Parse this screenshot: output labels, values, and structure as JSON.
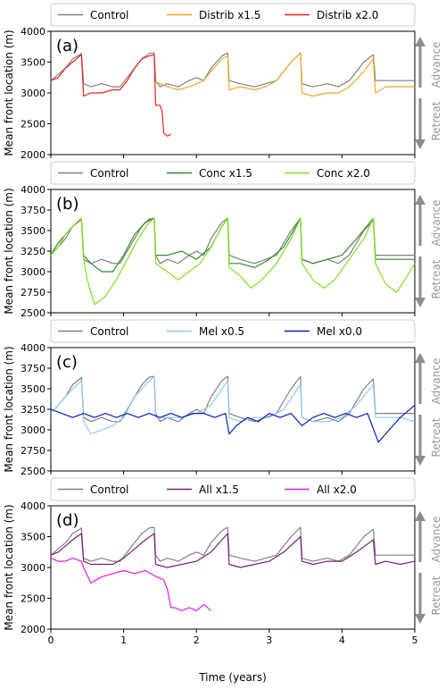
{
  "figure": {
    "xlabel": "Time (years)",
    "ylabel": "Mean front location (m)",
    "advance_label": "Advance",
    "retreat_label": "Retreat",
    "arrow_color": "#8c8c8c"
  },
  "chart_data": [
    {
      "type": "line",
      "panel_label": "(a)",
      "xlim": [
        0,
        5
      ],
      "ylim": [
        2000,
        4000
      ],
      "yticks": [
        2000,
        2500,
        3000,
        3500,
        4000
      ],
      "xticks": [
        0,
        1,
        2,
        3,
        4,
        5
      ],
      "legend": "top",
      "series": [
        {
          "name": "Control",
          "color": "#808080",
          "x": [
            0,
            0.1,
            0.2,
            0.3,
            0.4,
            0.42,
            0.45,
            0.55,
            0.7,
            0.85,
            0.95,
            1.05,
            1.15,
            1.25,
            1.35,
            1.42,
            1.44,
            1.5,
            1.6,
            1.75,
            1.9,
            2.0,
            2.1,
            2.2,
            2.35,
            2.43,
            2.45,
            2.6,
            2.8,
            2.95,
            3.1,
            3.3,
            3.43,
            3.45,
            3.6,
            3.8,
            3.95,
            4.1,
            4.3,
            4.43,
            4.46,
            4.6,
            4.8,
            5.0
          ],
          "y": [
            3200,
            3300,
            3400,
            3550,
            3620,
            3640,
            3150,
            3100,
            3150,
            3100,
            3100,
            3250,
            3400,
            3550,
            3640,
            3650,
            3200,
            3100,
            3150,
            3100,
            3200,
            3250,
            3200,
            3400,
            3600,
            3650,
            3200,
            3150,
            3100,
            3150,
            3200,
            3500,
            3650,
            3150,
            3100,
            3150,
            3100,
            3200,
            3500,
            3620,
            3200,
            3200,
            3200,
            3200
          ]
        },
        {
          "name": "Distrib x1.5",
          "color": "#f5a623",
          "x": [
            1.42,
            1.5,
            1.6,
            1.75,
            1.9,
            2.0,
            2.1,
            2.2,
            2.35,
            2.43,
            2.45,
            2.6,
            2.8,
            2.95,
            3.1,
            3.3,
            3.43,
            3.45,
            3.6,
            3.8,
            3.95,
            4.1,
            4.3,
            4.43,
            4.46,
            4.6,
            4.8,
            5.0
          ],
          "y": [
            3200,
            3150,
            3100,
            3050,
            3100,
            3150,
            3200,
            3350,
            3550,
            3600,
            3050,
            3100,
            3050,
            3100,
            3200,
            3500,
            3650,
            3000,
            2950,
            3000,
            3000,
            3100,
            3350,
            3550,
            3000,
            3100,
            3100,
            3100
          ]
        },
        {
          "name": "Distrib x2.0",
          "color": "#e8211e",
          "x": [
            0,
            0.1,
            0.2,
            0.3,
            0.4,
            0.42,
            0.45,
            0.55,
            0.7,
            0.85,
            0.95,
            1.05,
            1.15,
            1.25,
            1.35,
            1.42,
            1.44,
            1.5,
            1.53,
            1.55,
            1.6,
            1.65
          ],
          "y": [
            3200,
            3250,
            3400,
            3500,
            3600,
            3620,
            2950,
            3000,
            3000,
            3050,
            3050,
            3200,
            3400,
            3550,
            3600,
            3620,
            2800,
            2800,
            2700,
            2350,
            2300,
            2330
          ]
        }
      ]
    },
    {
      "type": "line",
      "panel_label": "(b)",
      "xlim": [
        0,
        5
      ],
      "ylim": [
        2500,
        4000
      ],
      "yticks": [
        2500,
        2750,
        3000,
        3250,
        3500,
        3750,
        4000
      ],
      "xticks": [
        0,
        1,
        2,
        3,
        4,
        5
      ],
      "legend": "top",
      "series": [
        {
          "name": "Control",
          "color": "#808080",
          "x": [
            0,
            0.1,
            0.2,
            0.3,
            0.4,
            0.42,
            0.45,
            0.55,
            0.7,
            0.85,
            0.95,
            1.05,
            1.15,
            1.25,
            1.35,
            1.42,
            1.44,
            1.5,
            1.6,
            1.75,
            1.9,
            2.0,
            2.1,
            2.2,
            2.35,
            2.43,
            2.45,
            2.6,
            2.8,
            2.95,
            3.1,
            3.3,
            3.43,
            3.45,
            3.6,
            3.8,
            3.95,
            4.1,
            4.3,
            4.43,
            4.46,
            4.6,
            4.8,
            5.0
          ],
          "y": [
            3200,
            3300,
            3400,
            3550,
            3620,
            3640,
            3150,
            3100,
            3150,
            3100,
            3100,
            3250,
            3400,
            3550,
            3640,
            3650,
            3200,
            3100,
            3150,
            3100,
            3200,
            3250,
            3200,
            3400,
            3600,
            3650,
            3200,
            3150,
            3100,
            3150,
            3200,
            3500,
            3650,
            3150,
            3100,
            3150,
            3100,
            3200,
            3500,
            3620,
            3200,
            3200,
            3200,
            3200
          ]
        },
        {
          "name": "Conc x1.5",
          "color": "#2e8b2e",
          "x": [
            0,
            0.1,
            0.2,
            0.3,
            0.42,
            0.45,
            0.55,
            0.7,
            0.85,
            1.0,
            1.15,
            1.3,
            1.42,
            1.44,
            1.6,
            1.8,
            2.0,
            2.2,
            2.35,
            2.43,
            2.45,
            2.6,
            2.8,
            3.0,
            3.2,
            3.43,
            3.45,
            3.6,
            3.8,
            4.0,
            4.2,
            4.43,
            4.46,
            4.6,
            4.8,
            5.0
          ],
          "y": [
            3200,
            3350,
            3450,
            3550,
            3650,
            3200,
            3100,
            3000,
            3000,
            3200,
            3450,
            3600,
            3650,
            3200,
            3200,
            3250,
            3150,
            3300,
            3550,
            3650,
            3100,
            3100,
            3050,
            3150,
            3300,
            3650,
            3150,
            3100,
            3150,
            3200,
            3400,
            3650,
            3150,
            3150,
            3150,
            3150
          ]
        },
        {
          "name": "Conc x2.0",
          "color": "#7fe01e",
          "x": [
            0,
            0.1,
            0.2,
            0.3,
            0.42,
            0.45,
            0.5,
            0.6,
            0.75,
            0.9,
            1.05,
            1.2,
            1.35,
            1.42,
            1.44,
            1.6,
            1.75,
            1.9,
            2.05,
            2.2,
            2.35,
            2.43,
            2.45,
            2.6,
            2.75,
            2.9,
            3.1,
            3.3,
            3.43,
            3.45,
            3.6,
            3.75,
            3.9,
            4.1,
            4.3,
            4.43,
            4.46,
            4.6,
            4.75,
            4.9,
            5.0
          ],
          "y": [
            3200,
            3300,
            3450,
            3550,
            3650,
            3150,
            2900,
            2600,
            2700,
            2900,
            3150,
            3400,
            3600,
            3650,
            3100,
            3000,
            2900,
            3000,
            3100,
            3300,
            3550,
            3650,
            3050,
            2950,
            2800,
            2900,
            3100,
            3400,
            3650,
            3100,
            2900,
            2800,
            2900,
            3150,
            3400,
            3650,
            3100,
            2850,
            2750,
            2950,
            3100
          ]
        }
      ]
    },
    {
      "type": "line",
      "panel_label": "(c)",
      "xlim": [
        0,
        5
      ],
      "ylim": [
        2500,
        4000
      ],
      "yticks": [
        2500,
        2750,
        3000,
        3250,
        3500,
        3750,
        4000
      ],
      "xticks": [
        0,
        1,
        2,
        3,
        4,
        5
      ],
      "legend": "top",
      "series": [
        {
          "name": "Control",
          "color": "#808080",
          "x": [
            0,
            0.1,
            0.2,
            0.3,
            0.4,
            0.42,
            0.45,
            0.55,
            0.7,
            0.85,
            0.95,
            1.05,
            1.15,
            1.25,
            1.35,
            1.42,
            1.44,
            1.5,
            1.6,
            1.75,
            1.9,
            2.0,
            2.1,
            2.2,
            2.35,
            2.43,
            2.45,
            2.6,
            2.8,
            2.95,
            3.1,
            3.3,
            3.43,
            3.45,
            3.6,
            3.8,
            3.95,
            4.1,
            4.3,
            4.43,
            4.46,
            4.6,
            4.8,
            5.0
          ],
          "y": [
            3200,
            3300,
            3400,
            3550,
            3620,
            3640,
            3150,
            3100,
            3150,
            3100,
            3100,
            3250,
            3400,
            3550,
            3640,
            3650,
            3200,
            3100,
            3150,
            3100,
            3200,
            3250,
            3200,
            3400,
            3600,
            3650,
            3200,
            3150,
            3100,
            3150,
            3200,
            3500,
            3650,
            3150,
            3100,
            3150,
            3100,
            3200,
            3500,
            3620,
            3200,
            3200,
            3200,
            3200
          ]
        },
        {
          "name": "Mel x0.5",
          "color": "#87ceeb",
          "x": [
            0,
            0.1,
            0.2,
            0.3,
            0.42,
            0.45,
            0.55,
            0.7,
            0.85,
            1.0,
            1.15,
            1.3,
            1.42,
            1.44,
            1.6,
            1.8,
            2.0,
            2.2,
            2.35,
            2.43,
            2.45,
            2.6,
            2.8,
            3.0,
            3.2,
            3.43,
            3.45,
            3.6,
            3.8,
            4.0,
            4.2,
            4.43,
            4.46,
            4.6,
            4.8,
            5.0
          ],
          "y": [
            3200,
            3300,
            3400,
            3500,
            3600,
            3100,
            2950,
            3000,
            3050,
            3150,
            3400,
            3550,
            3650,
            3150,
            3150,
            3150,
            3200,
            3300,
            3500,
            3600,
            3150,
            3100,
            3150,
            3150,
            3250,
            3550,
            3150,
            3100,
            3100,
            3150,
            3300,
            3550,
            3150,
            3150,
            3150,
            3100
          ]
        },
        {
          "name": "Mel x0.0",
          "color": "#0a1fbf",
          "x": [
            0,
            0.15,
            0.3,
            0.45,
            0.6,
            0.75,
            0.9,
            1.05,
            1.2,
            1.35,
            1.5,
            1.65,
            1.8,
            1.95,
            2.1,
            2.25,
            2.4,
            2.45,
            2.55,
            2.7,
            2.85,
            3.0,
            3.15,
            3.3,
            3.45,
            3.6,
            3.75,
            3.9,
            4.05,
            4.2,
            4.35,
            4.5,
            4.65,
            4.8,
            5.0
          ],
          "y": [
            3250,
            3200,
            3150,
            3200,
            3150,
            3200,
            3150,
            3200,
            3150,
            3200,
            3150,
            3200,
            3150,
            3200,
            3200,
            3150,
            3200,
            2950,
            3050,
            3150,
            3100,
            3200,
            3150,
            3200,
            3050,
            3150,
            3200,
            3150,
            3200,
            3150,
            3200,
            2850,
            3000,
            3150,
            3300
          ]
        }
      ]
    },
    {
      "type": "line",
      "panel_label": "(d)",
      "xlim": [
        0,
        5
      ],
      "ylim": [
        2000,
        4000
      ],
      "yticks": [
        2000,
        2500,
        3000,
        3500,
        4000
      ],
      "xticks": [
        0,
        1,
        2,
        3,
        4,
        5
      ],
      "xticklabels": [
        "0",
        "1",
        "2",
        "3",
        "4",
        "5"
      ],
      "legend": "top",
      "series": [
        {
          "name": "Control",
          "color": "#808080",
          "x": [
            0,
            0.1,
            0.2,
            0.3,
            0.4,
            0.42,
            0.45,
            0.55,
            0.7,
            0.85,
            0.95,
            1.05,
            1.15,
            1.25,
            1.35,
            1.42,
            1.44,
            1.5,
            1.6,
            1.75,
            1.9,
            2.0,
            2.1,
            2.2,
            2.35,
            2.43,
            2.45,
            2.6,
            2.8,
            2.95,
            3.1,
            3.3,
            3.43,
            3.45,
            3.6,
            3.8,
            3.95,
            4.1,
            4.3,
            4.43,
            4.46,
            4.6,
            4.8,
            5.0
          ],
          "y": [
            3200,
            3300,
            3400,
            3550,
            3620,
            3640,
            3150,
            3100,
            3150,
            3100,
            3100,
            3250,
            3400,
            3550,
            3640,
            3650,
            3200,
            3100,
            3150,
            3100,
            3200,
            3250,
            3200,
            3400,
            3600,
            3650,
            3200,
            3150,
            3100,
            3150,
            3200,
            3500,
            3650,
            3150,
            3100,
            3150,
            3100,
            3200,
            3500,
            3620,
            3200,
            3200,
            3200,
            3200
          ]
        },
        {
          "name": "All x1.5",
          "color": "#7b1f7b",
          "x": [
            0,
            0.1,
            0.2,
            0.3,
            0.42,
            0.45,
            0.55,
            0.7,
            0.85,
            1.0,
            1.15,
            1.3,
            1.42,
            1.44,
            1.6,
            1.8,
            2.0,
            2.2,
            2.35,
            2.43,
            2.45,
            2.6,
            2.8,
            3.0,
            3.2,
            3.43,
            3.45,
            3.6,
            3.8,
            4.0,
            4.2,
            4.43,
            4.46,
            4.6,
            4.8,
            5.0
          ],
          "y": [
            3200,
            3250,
            3350,
            3450,
            3550,
            3100,
            3050,
            3050,
            3050,
            3150,
            3300,
            3450,
            3550,
            3050,
            3000,
            3050,
            3100,
            3250,
            3450,
            3550,
            3050,
            3000,
            3050,
            3100,
            3250,
            3500,
            3100,
            3050,
            3100,
            3100,
            3250,
            3450,
            3050,
            3100,
            3050,
            3100
          ]
        },
        {
          "name": "All x2.0",
          "color": "#e619e6",
          "x": [
            0,
            0.1,
            0.2,
            0.3,
            0.42,
            0.45,
            0.55,
            0.7,
            0.85,
            1.0,
            1.15,
            1.3,
            1.45,
            1.55,
            1.6,
            1.65,
            1.7,
            1.8,
            1.9,
            2.0,
            2.1,
            2.2
          ],
          "y": [
            3150,
            3100,
            3100,
            3150,
            3100,
            3000,
            2750,
            2850,
            2900,
            2950,
            2900,
            2950,
            2850,
            2800,
            2650,
            2350,
            2350,
            2300,
            2350,
            2300,
            2400,
            2300
          ]
        }
      ]
    }
  ]
}
